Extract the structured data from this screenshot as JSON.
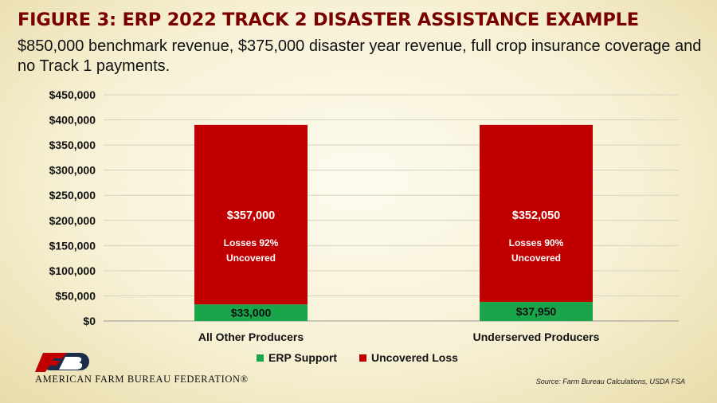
{
  "header": {
    "title": "FIGURE 3: ERP 2022 TRACK 2 DISASTER ASSISTANCE EXAMPLE",
    "subtitle": "$850,000 benchmark revenue, $375,000 disaster year revenue, full crop insurance coverage and no Track 1 payments."
  },
  "footer": {
    "org_name": "AMERICAN FARM BUREAU FEDERATION®",
    "source": "Source: Farm Bureau Calculations, USDA FSA"
  },
  "colors": {
    "title": "#7a0000",
    "erp_support": "#1aa54b",
    "uncovered_loss": "#c00000",
    "logo_red": "#c00000",
    "logo_navy": "#1c2b4a"
  },
  "chart_data": {
    "type": "bar",
    "stacked": true,
    "categories": [
      "All Other Producers",
      "Underserved Producers"
    ],
    "series": [
      {
        "name": "ERP Support",
        "values": [
          33000,
          37950
        ],
        "labels": [
          "$33,000",
          "$37,950"
        ]
      },
      {
        "name": "Uncovered Loss",
        "values": [
          357000,
          352050
        ],
        "labels": [
          "$357,000",
          "$352,050"
        ]
      }
    ],
    "annotations": [
      [
        "Losses 92%",
        "Uncovered"
      ],
      [
        "Losses 90%",
        "Uncovered"
      ]
    ],
    "ylim": [
      0,
      450000
    ],
    "yticks": [
      "$0",
      "$50,000",
      "$100,000",
      "$150,000",
      "$200,000",
      "$250,000",
      "$300,000",
      "$350,000",
      "$400,000",
      "$450,000"
    ],
    "grid": true,
    "legend": "bottom"
  }
}
